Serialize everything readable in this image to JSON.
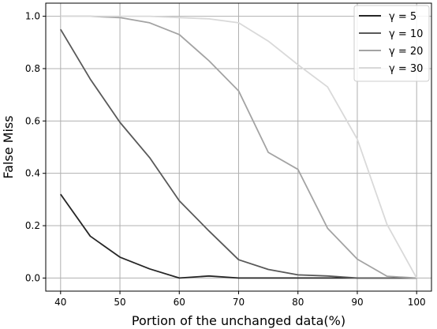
{
  "chart_data": {
    "type": "line",
    "title": "",
    "xlabel": "Portion of the unchanged data(%)",
    "ylabel": "False Miss",
    "x": [
      40,
      45,
      50,
      55,
      60,
      65,
      70,
      75,
      80,
      85,
      90,
      95,
      100
    ],
    "xlim": [
      37.5,
      102.5
    ],
    "ylim": [
      -0.05,
      1.05
    ],
    "xticks": [
      "40",
      "50",
      "60",
      "70",
      "80",
      "90",
      "100"
    ],
    "yticks": [
      "0.0",
      "0.2",
      "0.4",
      "0.6",
      "0.8",
      "1.0"
    ],
    "grid": true,
    "legend_position": "top-right",
    "series": [
      {
        "name": "γ = 5",
        "color": "#262626",
        "values": [
          0.32,
          0.16,
          0.08,
          0.035,
          0.0,
          0.008,
          0.0,
          0.0,
          0.0,
          0.0,
          0.0,
          0.0,
          0.0
        ]
      },
      {
        "name": "γ = 10",
        "color": "#595959",
        "values": [
          0.95,
          0.76,
          0.595,
          0.46,
          0.295,
          0.18,
          0.07,
          0.033,
          0.012,
          0.008,
          0.0,
          0.0,
          0.0
        ]
      },
      {
        "name": "γ = 20",
        "color": "#a3a3a3",
        "values": [
          1.0,
          1.0,
          0.995,
          0.975,
          0.93,
          0.83,
          0.715,
          0.48,
          0.415,
          0.19,
          0.072,
          0.007,
          0.0
        ]
      },
      {
        "name": "γ = 30",
        "color": "#d9d9d9",
        "values": [
          1.0,
          1.0,
          1.0,
          1.0,
          0.995,
          0.99,
          0.975,
          0.905,
          0.815,
          0.73,
          0.53,
          0.205,
          0.0
        ]
      }
    ]
  }
}
